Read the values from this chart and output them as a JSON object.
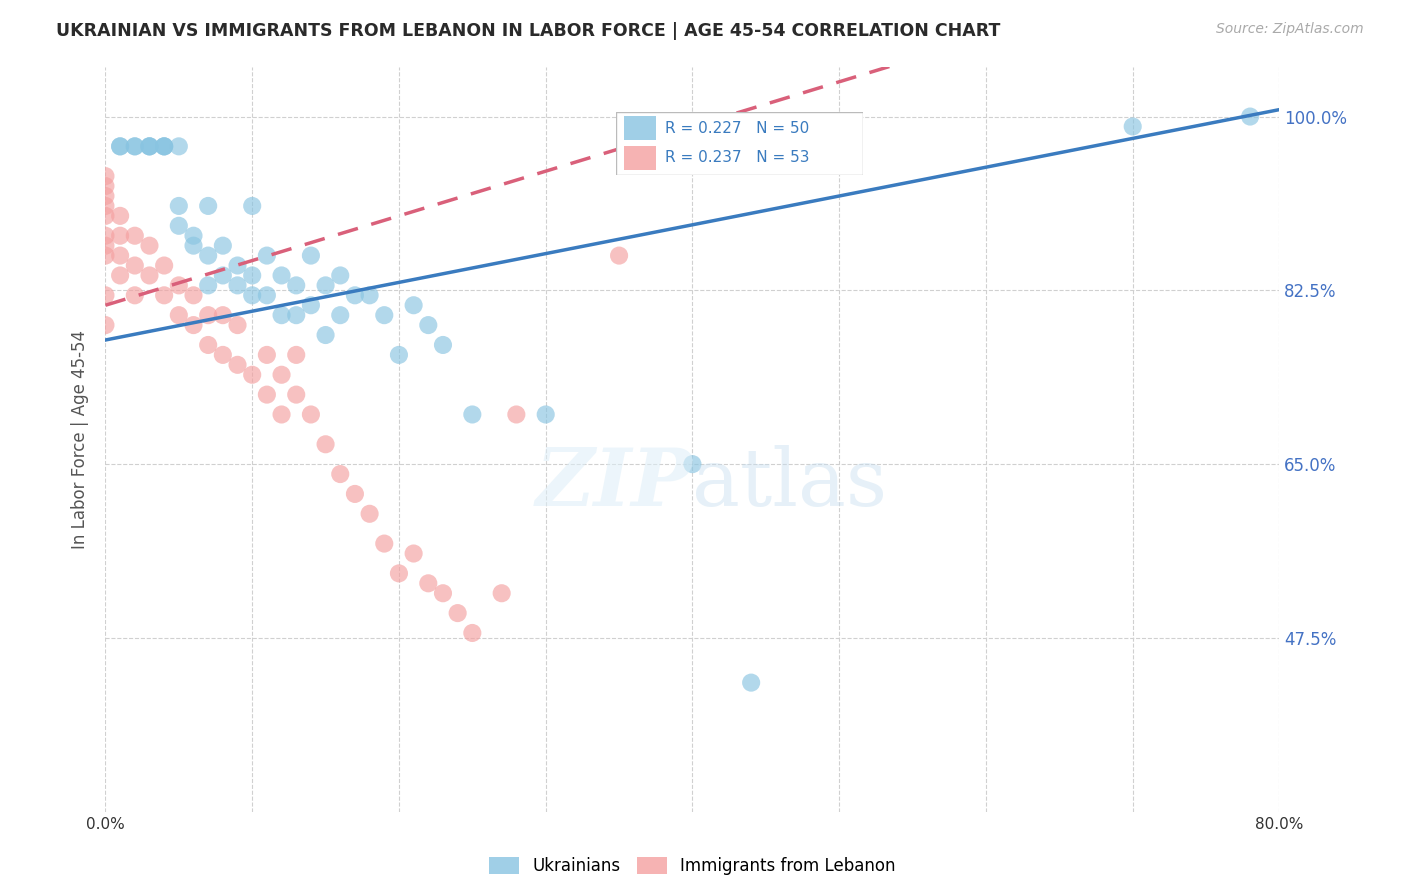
{
  "title": "UKRAINIAN VS IMMIGRANTS FROM LEBANON IN LABOR FORCE | AGE 45-54 CORRELATION CHART",
  "source": "Source: ZipAtlas.com",
  "ylabel": "In Labor Force | Age 45-54",
  "xlim": [
    0.0,
    0.8
  ],
  "ylim": [
    0.3,
    1.05
  ],
  "yticks": [
    0.475,
    0.65,
    0.825,
    1.0
  ],
  "ytick_labels": [
    "47.5%",
    "65.0%",
    "82.5%",
    "100.0%"
  ],
  "xticks": [
    0.0,
    0.1,
    0.2,
    0.3,
    0.4,
    0.5,
    0.6,
    0.7,
    0.8
  ],
  "xtick_labels": [
    "0.0%",
    "",
    "",
    "",
    "",
    "",
    "",
    "",
    "80.0%"
  ],
  "blue_R": 0.227,
  "blue_N": 50,
  "pink_R": 0.237,
  "pink_N": 53,
  "blue_color": "#89c4e1",
  "pink_color": "#f4a0a0",
  "blue_line_color": "#3a7bbf",
  "pink_line_color": "#d9607a",
  "pink_line_dash": [
    6,
    4
  ],
  "grid_color": "#d0d0d0",
  "title_color": "#2a2a2a",
  "right_tick_color": "#4472c4",
  "blue_intercept": 0.775,
  "blue_slope": 0.29,
  "pink_intercept": 0.81,
  "pink_slope": 0.45,
  "blue_points_x": [
    0.01,
    0.01,
    0.02,
    0.02,
    0.03,
    0.03,
    0.03,
    0.04,
    0.04,
    0.04,
    0.05,
    0.05,
    0.05,
    0.06,
    0.06,
    0.07,
    0.07,
    0.07,
    0.08,
    0.08,
    0.09,
    0.09,
    0.1,
    0.1,
    0.1,
    0.11,
    0.11,
    0.12,
    0.12,
    0.13,
    0.13,
    0.14,
    0.14,
    0.15,
    0.15,
    0.16,
    0.16,
    0.17,
    0.18,
    0.19,
    0.2,
    0.21,
    0.22,
    0.23,
    0.25,
    0.3,
    0.4,
    0.44,
    0.7,
    0.78
  ],
  "blue_points_y": [
    0.97,
    0.97,
    0.97,
    0.97,
    0.97,
    0.97,
    0.97,
    0.97,
    0.97,
    0.97,
    0.97,
    0.89,
    0.91,
    0.87,
    0.88,
    0.83,
    0.86,
    0.91,
    0.84,
    0.87,
    0.83,
    0.85,
    0.82,
    0.84,
    0.91,
    0.82,
    0.86,
    0.8,
    0.84,
    0.8,
    0.83,
    0.81,
    0.86,
    0.78,
    0.83,
    0.8,
    0.84,
    0.82,
    0.82,
    0.8,
    0.76,
    0.81,
    0.79,
    0.77,
    0.7,
    0.7,
    0.65,
    0.43,
    0.99,
    1.0
  ],
  "pink_points_x": [
    0.0,
    0.0,
    0.0,
    0.0,
    0.0,
    0.0,
    0.0,
    0.0,
    0.0,
    0.0,
    0.01,
    0.01,
    0.01,
    0.01,
    0.02,
    0.02,
    0.02,
    0.03,
    0.03,
    0.04,
    0.04,
    0.05,
    0.05,
    0.06,
    0.06,
    0.07,
    0.07,
    0.08,
    0.08,
    0.09,
    0.09,
    0.1,
    0.11,
    0.11,
    0.12,
    0.12,
    0.13,
    0.13,
    0.14,
    0.15,
    0.16,
    0.17,
    0.18,
    0.19,
    0.2,
    0.21,
    0.22,
    0.23,
    0.24,
    0.25,
    0.27,
    0.28,
    0.35
  ],
  "pink_points_y": [
    0.86,
    0.87,
    0.88,
    0.9,
    0.91,
    0.92,
    0.93,
    0.94,
    0.79,
    0.82,
    0.84,
    0.86,
    0.88,
    0.9,
    0.82,
    0.85,
    0.88,
    0.84,
    0.87,
    0.82,
    0.85,
    0.8,
    0.83,
    0.79,
    0.82,
    0.77,
    0.8,
    0.76,
    0.8,
    0.75,
    0.79,
    0.74,
    0.72,
    0.76,
    0.7,
    0.74,
    0.72,
    0.76,
    0.7,
    0.67,
    0.64,
    0.62,
    0.6,
    0.57,
    0.54,
    0.56,
    0.53,
    0.52,
    0.5,
    0.48,
    0.52,
    0.7,
    0.86
  ]
}
